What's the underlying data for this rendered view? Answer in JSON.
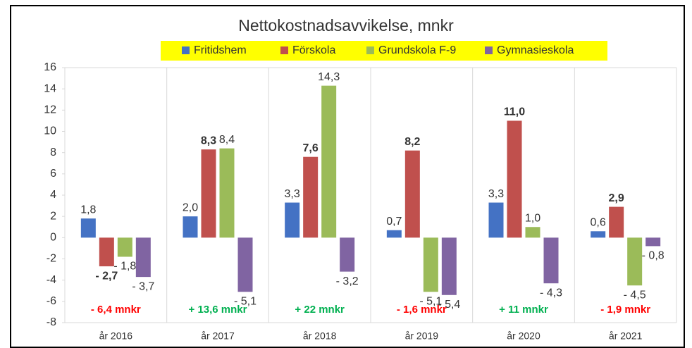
{
  "chart_data": {
    "type": "bar",
    "title": "Nettokostnadsavvikelse, mnkr",
    "categories": [
      "år 2016",
      "år 2017",
      "år 2018",
      "år 2019",
      "år 2020",
      "år 2021"
    ],
    "series": [
      {
        "name": "Fritidshem",
        "color": "#4472c4",
        "values": [
          1.8,
          2.0,
          3.3,
          0.7,
          3.3,
          0.6
        ],
        "value_labels": [
          "1,8",
          "2,0",
          "3,3",
          "0,7",
          "3,3",
          "0,6"
        ],
        "label_bold": false
      },
      {
        "name": "Förskola",
        "color": "#c0504d",
        "values": [
          -2.7,
          8.3,
          7.6,
          8.2,
          11.0,
          2.9
        ],
        "value_labels": [
          "- 2,7",
          "8,3",
          "7,6",
          "8,2",
          "11,0",
          "2,9"
        ],
        "label_bold": true
      },
      {
        "name": "Grundskola F-9",
        "color": "#9bbb59",
        "values": [
          -1.8,
          8.4,
          14.3,
          -5.1,
          1.0,
          -4.5
        ],
        "value_labels": [
          "- 1,8",
          "8,4",
          "14,3",
          "- 5,1",
          "1,0",
          "- 4,5"
        ],
        "label_bold": false
      },
      {
        "name": "Gymnasieskola",
        "color": "#8064a2",
        "values": [
          -3.7,
          -5.1,
          -3.2,
          -5.4,
          -4.3,
          -0.8
        ],
        "value_labels": [
          "- 3,7",
          "- 5,1",
          "- 3,2",
          "- 5,4",
          "- 4,3",
          "- 0,8"
        ],
        "label_bold": false
      }
    ],
    "annotations": [
      {
        "text": "- 6,4  mnkr",
        "color": "#ff0000"
      },
      {
        "text": "+ 13,6 mnkr",
        "color": "#00b050"
      },
      {
        "text": "+ 22 mnkr",
        "color": "#00b050"
      },
      {
        "text": "- 1,6 mnkr",
        "color": "#ff0000"
      },
      {
        "text": "+ 11 mnkr",
        "color": "#00b050"
      },
      {
        "text": "- 1,9 mnkr",
        "color": "#ff0000"
      }
    ],
    "ylim": [
      -8,
      16
    ],
    "yticks": [
      -8,
      -6,
      -4,
      -2,
      0,
      2,
      4,
      6,
      8,
      10,
      12,
      14,
      16
    ],
    "legend_background": "#ffff00",
    "legend_position": "top"
  }
}
